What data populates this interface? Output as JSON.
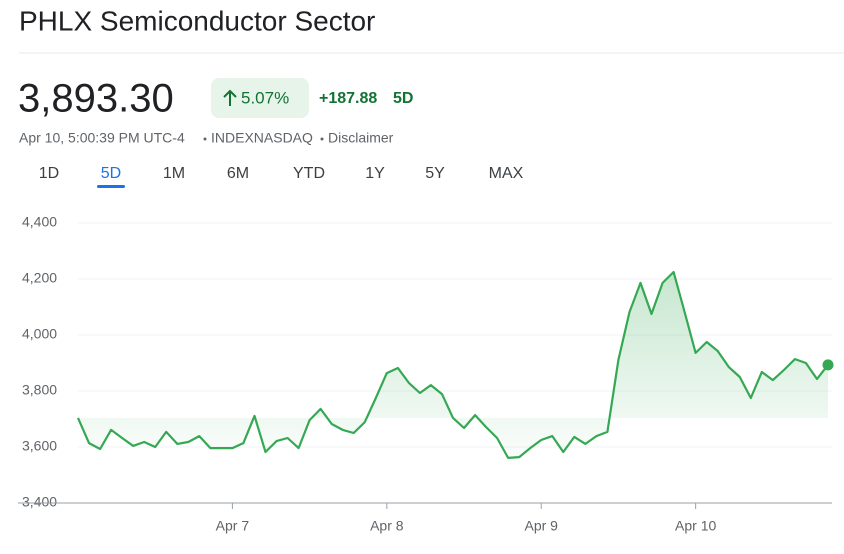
{
  "header": {
    "title": "PHLX Semiconductor Sector"
  },
  "quote": {
    "price": "3,893.30",
    "change_percent": "5.07%",
    "change": "+187.88",
    "period": "5D"
  },
  "meta": {
    "timestamp": "Apr 10, 5:00:39 PM UTC-4",
    "exchange": "INDEXNASDAQ",
    "disclaimer": "Disclaimer"
  },
  "tabs": [
    "1D",
    "5D",
    "1M",
    "6M",
    "YTD",
    "1Y",
    "5Y",
    "MAX"
  ],
  "active_tab": 1,
  "chart_data": {
    "type": "line",
    "categories": [
      null,
      null,
      null,
      null,
      null,
      null,
      null,
      null,
      null,
      null,
      null,
      null,
      null,
      null,
      "Apr 7",
      null,
      null,
      null,
      null,
      null,
      null,
      null,
      null,
      null,
      null,
      null,
      null,
      null,
      "Apr 8",
      null,
      null,
      null,
      null,
      null,
      null,
      null,
      null,
      null,
      null,
      null,
      null,
      null,
      "Apr 9",
      null,
      null,
      null,
      null,
      null,
      null,
      null,
      null,
      null,
      null,
      null,
      null,
      null,
      "Apr 10",
      null,
      null,
      null,
      null,
      null,
      null,
      null,
      null,
      null,
      null,
      null,
      null
    ],
    "series": [
      {
        "color": "#34a853",
        "values": [
          3704,
          3614,
          3593,
          3661,
          3632,
          3604,
          3618,
          3600,
          3654,
          3611,
          3618,
          3639,
          3596,
          3596,
          3596,
          3614,
          3711,
          3582,
          3621,
          3632,
          3596,
          3696,
          3736,
          3682,
          3661,
          3650,
          3689,
          3775,
          3864,
          3882,
          3829,
          3793,
          3821,
          3789,
          3704,
          3668,
          3714,
          3671,
          3632,
          3561,
          3564,
          3596,
          3625,
          3639,
          3582,
          3636,
          3611,
          3639,
          3654,
          3911,
          4082,
          4186,
          4075,
          4186,
          4225,
          4082,
          3936,
          3975,
          3943,
          3886,
          3850,
          3775,
          3868,
          3839,
          3875,
          3914,
          3900,
          3843,
          3893.3
        ]
      }
    ],
    "ylim": [
      3400,
      4400
    ],
    "yticks": [
      {
        "value": 3400,
        "label": "3,400"
      },
      {
        "value": 3600,
        "label": "3,600"
      },
      {
        "value": 3800,
        "label": "3,800"
      },
      {
        "value": 4000,
        "label": "4,000"
      },
      {
        "value": 4200,
        "label": "4,200"
      },
      {
        "value": 4400,
        "label": "4,400"
      }
    ],
    "grid": true
  }
}
